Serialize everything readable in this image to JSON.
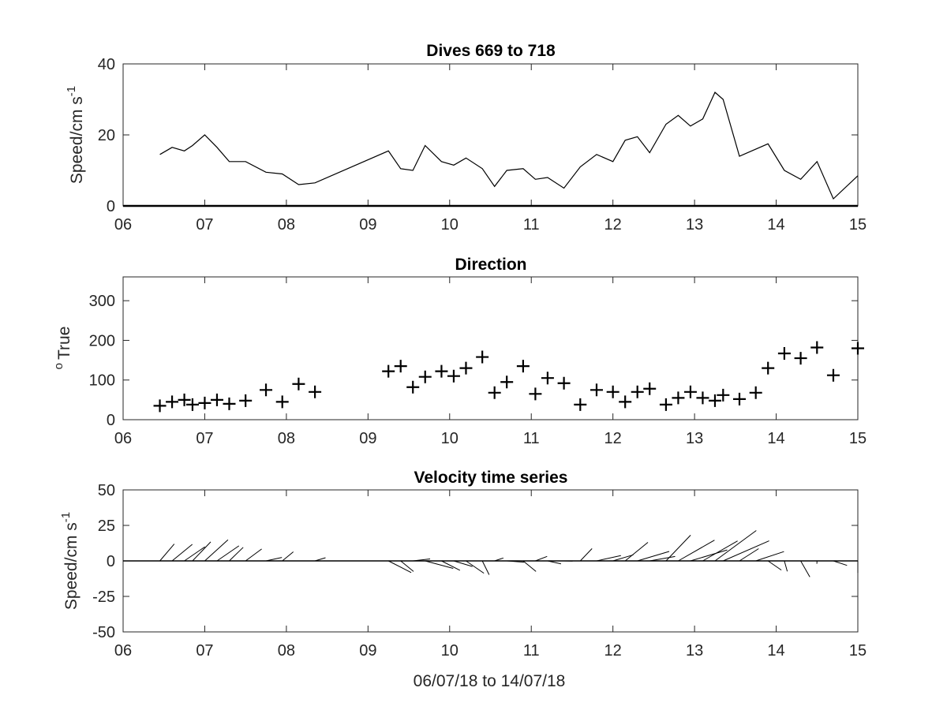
{
  "chart_data": [
    {
      "type": "line",
      "title": "Dives 669 to 718",
      "ylabel": "Speed/cm s",
      "ylabel_sup": "-1",
      "xlim": [
        6,
        15
      ],
      "ylim": [
        0,
        40
      ],
      "xticks": [
        "06",
        "07",
        "08",
        "09",
        "10",
        "11",
        "12",
        "13",
        "14",
        "15"
      ],
      "yticks": [
        "0",
        "20",
        "40"
      ],
      "x": [
        6.45,
        6.6,
        6.75,
        6.85,
        7.0,
        7.15,
        7.3,
        7.5,
        7.75,
        7.95,
        8.15,
        8.35,
        9.25,
        9.4,
        9.55,
        9.7,
        9.9,
        10.05,
        10.2,
        10.4,
        10.55,
        10.7,
        10.9,
        11.05,
        11.2,
        11.4,
        11.6,
        11.8,
        12.0,
        12.15,
        12.3,
        12.45,
        12.65,
        12.8,
        12.95,
        13.1,
        13.25,
        13.35,
        13.55,
        13.9,
        14.1,
        14.3,
        14.5,
        14.7,
        15.0
      ],
      "y": [
        14.5,
        16.5,
        15.5,
        17.0,
        20.0,
        16.5,
        12.5,
        12.5,
        9.5,
        9.0,
        6.0,
        6.5,
        15.5,
        10.5,
        10.0,
        17.0,
        12.5,
        11.5,
        13.5,
        10.5,
        5.5,
        10.0,
        10.5,
        7.5,
        8.0,
        5.0,
        11.0,
        14.5,
        12.5,
        18.5,
        19.5,
        15.0,
        23.0,
        25.5,
        22.5,
        24.5,
        32.0,
        30.0,
        14.0,
        17.5,
        10.0,
        7.5,
        12.5,
        2.0,
        8.5
      ]
    },
    {
      "type": "scatter",
      "title": "Direction",
      "ylabel": "True",
      "ylabel_prefix": "o",
      "xlim": [
        6,
        15
      ],
      "ylim": [
        0,
        360
      ],
      "xticks": [
        "06",
        "07",
        "08",
        "09",
        "10",
        "11",
        "12",
        "13",
        "14",
        "15"
      ],
      "yticks": [
        "0",
        "100",
        "200",
        "300"
      ],
      "marker": "+",
      "x": [
        6.45,
        6.6,
        6.75,
        6.85,
        7.0,
        7.15,
        7.3,
        7.5,
        7.75,
        7.95,
        8.15,
        8.35,
        9.25,
        9.4,
        9.55,
        9.7,
        9.9,
        10.05,
        10.2,
        10.4,
        10.55,
        10.7,
        10.9,
        11.05,
        11.2,
        11.4,
        11.6,
        11.8,
        12.0,
        12.15,
        12.3,
        12.45,
        12.65,
        12.8,
        12.95,
        13.1,
        13.25,
        13.35,
        13.55,
        13.75,
        13.9,
        14.1,
        14.3,
        14.5,
        14.7,
        15.0
      ],
      "y": [
        35,
        45,
        50,
        38,
        42,
        50,
        40,
        48,
        75,
        45,
        90,
        70,
        122,
        135,
        82,
        108,
        122,
        110,
        130,
        158,
        68,
        95,
        135,
        65,
        105,
        92,
        38,
        75,
        70,
        45,
        70,
        78,
        38,
        55,
        70,
        55,
        48,
        62,
        52,
        68,
        130,
        167,
        155,
        182,
        112,
        180
      ]
    },
    {
      "type": "quiver",
      "title": "Velocity time series",
      "ylabel": "Speed/cm s",
      "ylabel_sup": "-1",
      "xlabel": "06/07/18 to 14/07/18",
      "xlim": [
        6,
        15
      ],
      "ylim": [
        -50,
        50
      ],
      "xticks": [
        "06",
        "07",
        "08",
        "09",
        "10",
        "11",
        "12",
        "13",
        "14",
        "15"
      ],
      "yticks": [
        "50",
        "25",
        "0",
        "-25",
        "-50"
      ],
      "x": [
        6.45,
        6.6,
        6.75,
        6.85,
        7.0,
        7.15,
        7.3,
        7.5,
        7.75,
        7.95,
        8.15,
        8.35,
        9.25,
        9.4,
        9.55,
        9.7,
        9.9,
        10.05,
        10.2,
        10.4,
        10.55,
        10.7,
        10.9,
        11.05,
        11.2,
        11.4,
        11.6,
        11.8,
        12.0,
        12.15,
        12.3,
        12.45,
        12.65,
        12.8,
        12.95,
        13.1,
        13.25,
        13.35,
        13.55,
        13.75,
        13.9,
        14.1,
        14.3,
        14.5,
        14.7,
        15.0
      ],
      "speed": [
        14.5,
        16.5,
        15.5,
        17.0,
        20.0,
        16.5,
        12.5,
        12.5,
        9.5,
        9.0,
        6.0,
        6.5,
        15.5,
        10.5,
        10.0,
        17.0,
        12.5,
        11.5,
        13.5,
        10.5,
        5.5,
        10.0,
        10.5,
        7.5,
        8.0,
        5.0,
        11.0,
        14.5,
        12.5,
        18.5,
        19.5,
        15.0,
        23.0,
        25.5,
        22.5,
        24.5,
        32.0,
        30.0,
        14.0,
        17.5,
        10.0,
        7.5,
        12.5,
        2.0,
        8.5,
        8.5
      ],
      "direction_deg_true": [
        35,
        45,
        50,
        38,
        42,
        50,
        40,
        48,
        75,
        45,
        90,
        70,
        122,
        135,
        82,
        108,
        122,
        110,
        130,
        158,
        68,
        95,
        135,
        65,
        105,
        92,
        38,
        75,
        70,
        45,
        70,
        78,
        38,
        55,
        70,
        55,
        48,
        62,
        52,
        68,
        130,
        167,
        155,
        182,
        112,
        180
      ]
    }
  ]
}
